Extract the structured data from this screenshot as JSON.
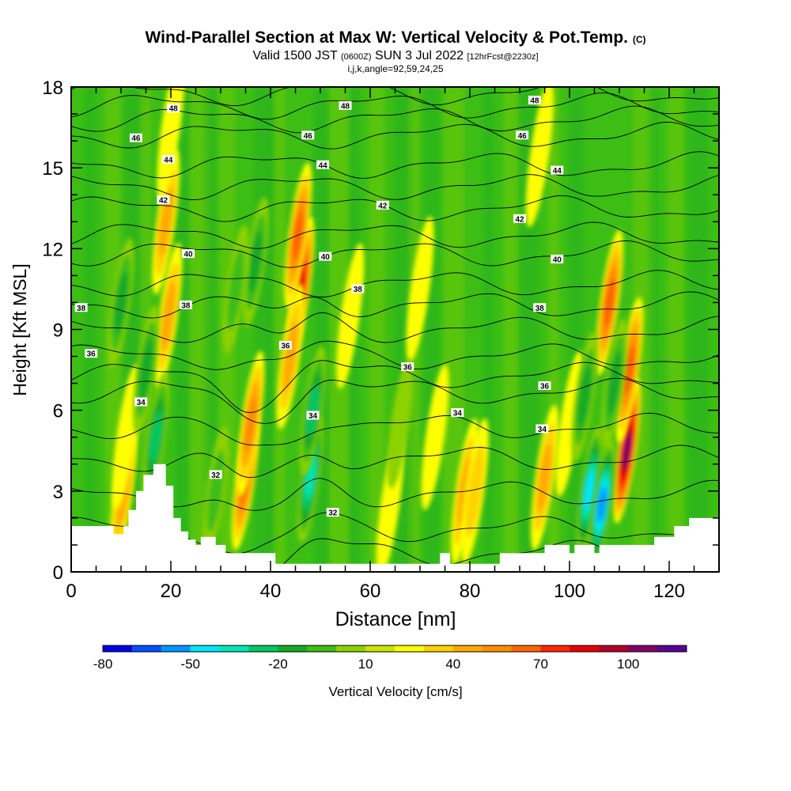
{
  "title": {
    "main": "Wind-Parallel Section at Max W: Vertical Velocity & Pot.Temp.",
    "main_suffix": "(C)",
    "valid_prefix": "Valid 1500 JST",
    "valid_utc": "(0600Z)",
    "valid_date": "SUN 3 Jul 2022",
    "forecast": "[12hrFcst@2230z]",
    "params": "i,j,k,angle=92,59,24,25"
  },
  "chart_data": {
    "type": "heatmap",
    "xlabel": "Distance [nm]",
    "ylabel": "Height [Kft MSL]",
    "xlim": [
      0,
      130
    ],
    "ylim": [
      0,
      18
    ],
    "xticks": [
      0,
      20,
      40,
      60,
      80,
      100,
      120
    ],
    "yticks": [
      0,
      3,
      6,
      9,
      12,
      15,
      18
    ],
    "background_w": 2,
    "updrafts": [
      {
        "x": 10.5,
        "y": 3.0,
        "w": 35
      },
      {
        "x": 11,
        "y": 5.0,
        "w": 18
      },
      {
        "x": 19.5,
        "y": 9.5,
        "w": 40
      },
      {
        "x": 19,
        "y": 13.0,
        "w": 32
      },
      {
        "x": 20,
        "y": 16.5,
        "w": 18
      },
      {
        "x": 35,
        "y": 3.5,
        "w": 60
      },
      {
        "x": 36,
        "y": 5.5,
        "w": 45
      },
      {
        "x": 46,
        "y": 10.5,
        "w": 80
      },
      {
        "x": 45.5,
        "y": 12.5,
        "w": 55
      },
      {
        "x": 44,
        "y": 8.0,
        "w": 35
      },
      {
        "x": 56,
        "y": 9.5,
        "w": 15
      },
      {
        "x": 70,
        "y": 10.5,
        "w": 15
      },
      {
        "x": 64,
        "y": 2.5,
        "w": 20
      },
      {
        "x": 73,
        "y": 5.0,
        "w": 18
      },
      {
        "x": 79,
        "y": 3.0,
        "w": 35
      },
      {
        "x": 81,
        "y": 3.0,
        "w": 30
      },
      {
        "x": 95,
        "y": 3.5,
        "w": 40
      },
      {
        "x": 94,
        "y": 15.5,
        "w": 20
      },
      {
        "x": 108,
        "y": 10.0,
        "w": 60
      },
      {
        "x": 111.5,
        "y": 4.5,
        "w": 95
      },
      {
        "x": 112,
        "y": 7.5,
        "w": 60
      },
      {
        "x": 100,
        "y": 5.5,
        "w": 12
      }
    ],
    "downdrafts": [
      {
        "x": 10,
        "y": 10.0,
        "w": -30
      },
      {
        "x": 17,
        "y": 5.0,
        "w": -45
      },
      {
        "x": 15,
        "y": 7.5,
        "w": -28
      },
      {
        "x": 37,
        "y": 11.5,
        "w": -35
      },
      {
        "x": 33,
        "y": 10.5,
        "w": -25
      },
      {
        "x": 48,
        "y": 3.5,
        "w": -55
      },
      {
        "x": 48.5,
        "y": 6.0,
        "w": -40
      },
      {
        "x": 104,
        "y": 3.0,
        "w": -65
      },
      {
        "x": 106.5,
        "y": 2.5,
        "w": -70
      },
      {
        "x": 103,
        "y": 6.5,
        "w": -35
      },
      {
        "x": 109,
        "y": 7.0,
        "w": -30
      },
      {
        "x": 29,
        "y": 3.0,
        "w": -20
      },
      {
        "x": 66,
        "y": 5.5,
        "w": -15
      }
    ],
    "theta_levels": [
      32,
      34,
      36,
      38,
      40,
      42,
      44,
      46,
      48
    ],
    "theta_labels": [
      {
        "text": "48",
        "x": 20.5,
        "y": 17.2
      },
      {
        "text": "48",
        "x": 55,
        "y": 17.3
      },
      {
        "text": "48",
        "x": 93,
        "y": 17.5
      },
      {
        "text": "46",
        "x": 13,
        "y": 16.1
      },
      {
        "text": "46",
        "x": 47.5,
        "y": 16.2
      },
      {
        "text": "46",
        "x": 90.5,
        "y": 16.2
      },
      {
        "text": "44",
        "x": 19.5,
        "y": 15.3
      },
      {
        "text": "44",
        "x": 50.5,
        "y": 15.1
      },
      {
        "text": "44",
        "x": 97.5,
        "y": 14.9
      },
      {
        "text": "42",
        "x": 18.5,
        "y": 13.8
      },
      {
        "text": "42",
        "x": 62.5,
        "y": 13.6
      },
      {
        "text": "42",
        "x": 90,
        "y": 13.1
      },
      {
        "text": "40",
        "x": 23.5,
        "y": 11.8
      },
      {
        "text": "40",
        "x": 51,
        "y": 11.7
      },
      {
        "text": "40",
        "x": 97.5,
        "y": 11.6
      },
      {
        "text": "38",
        "x": 2,
        "y": 9.8
      },
      {
        "text": "38",
        "x": 23,
        "y": 9.9
      },
      {
        "text": "38",
        "x": 57.5,
        "y": 10.5
      },
      {
        "text": "38",
        "x": 94,
        "y": 9.8
      },
      {
        "text": "36",
        "x": 4,
        "y": 8.1
      },
      {
        "text": "36",
        "x": 43,
        "y": 8.4
      },
      {
        "text": "36",
        "x": 67.5,
        "y": 7.6
      },
      {
        "text": "36",
        "x": 95,
        "y": 6.9
      },
      {
        "text": "34",
        "x": 14,
        "y": 6.3
      },
      {
        "text": "34",
        "x": 48.5,
        "y": 5.8
      },
      {
        "text": "34",
        "x": 77.5,
        "y": 5.9
      },
      {
        "text": "34",
        "x": 94.5,
        "y": 5.3
      },
      {
        "text": "32",
        "x": 29,
        "y": 3.6
      },
      {
        "text": "32",
        "x": 52.5,
        "y": 2.2
      }
    ],
    "terrain": [
      [
        0,
        1.7
      ],
      [
        8.5,
        1.7
      ],
      [
        8.5,
        1.4
      ],
      [
        10.5,
        1.4
      ],
      [
        10.5,
        1.7
      ],
      [
        11.5,
        1.7
      ],
      [
        11.5,
        2.3
      ],
      [
        13,
        2.3
      ],
      [
        13,
        3.0
      ],
      [
        14.5,
        3.0
      ],
      [
        14.5,
        3.6
      ],
      [
        16.5,
        3.6
      ],
      [
        16.5,
        4.0
      ],
      [
        19,
        4.0
      ],
      [
        19,
        3.2
      ],
      [
        20.5,
        3.2
      ],
      [
        20.5,
        2.0
      ],
      [
        22,
        2.0
      ],
      [
        22,
        1.5
      ],
      [
        23.5,
        1.5
      ],
      [
        23.5,
        1.2
      ],
      [
        25,
        1.2
      ],
      [
        25,
        1.0
      ],
      [
        26,
        1.0
      ],
      [
        26,
        1.3
      ],
      [
        29,
        1.3
      ],
      [
        29,
        1.0
      ],
      [
        31,
        1.0
      ],
      [
        31,
        0.7
      ],
      [
        41,
        0.7
      ],
      [
        41,
        0.3
      ],
      [
        45,
        0.3
      ],
      [
        45,
        0.3
      ],
      [
        74,
        0.3
      ],
      [
        74,
        0.7
      ],
      [
        76,
        0.7
      ],
      [
        76,
        0.3
      ],
      [
        86,
        0.3
      ],
      [
        86,
        0.7
      ],
      [
        95,
        0.7
      ],
      [
        95,
        1.0
      ],
      [
        100,
        1.0
      ],
      [
        100,
        0.7
      ],
      [
        101,
        0.7
      ],
      [
        101,
        1.0
      ],
      [
        105,
        1.0
      ],
      [
        105,
        0.7
      ],
      [
        106,
        0.7
      ],
      [
        106,
        1.0
      ],
      [
        117,
        1.0
      ],
      [
        117,
        1.3
      ],
      [
        121,
        1.3
      ],
      [
        121,
        1.7
      ],
      [
        124,
        1.7
      ],
      [
        124,
        2.0
      ],
      [
        130,
        2.0
      ]
    ]
  },
  "colorbar": {
    "ticks": [
      "-80",
      "-50",
      "-20",
      "10",
      "40",
      "70",
      "100"
    ],
    "colors": [
      "#0000e6",
      "#0050ff",
      "#0096ff",
      "#00e6ff",
      "#00e6b4",
      "#00c864",
      "#14aa28",
      "#3cbe14",
      "#8cd200",
      "#c8e600",
      "#ffff00",
      "#ffd200",
      "#ffaa00",
      "#ff8c00",
      "#ff6400",
      "#ff2800",
      "#e60000",
      "#b40028",
      "#820064",
      "#5a0096"
    ],
    "label": "Vertical Velocity [cm/s]"
  }
}
